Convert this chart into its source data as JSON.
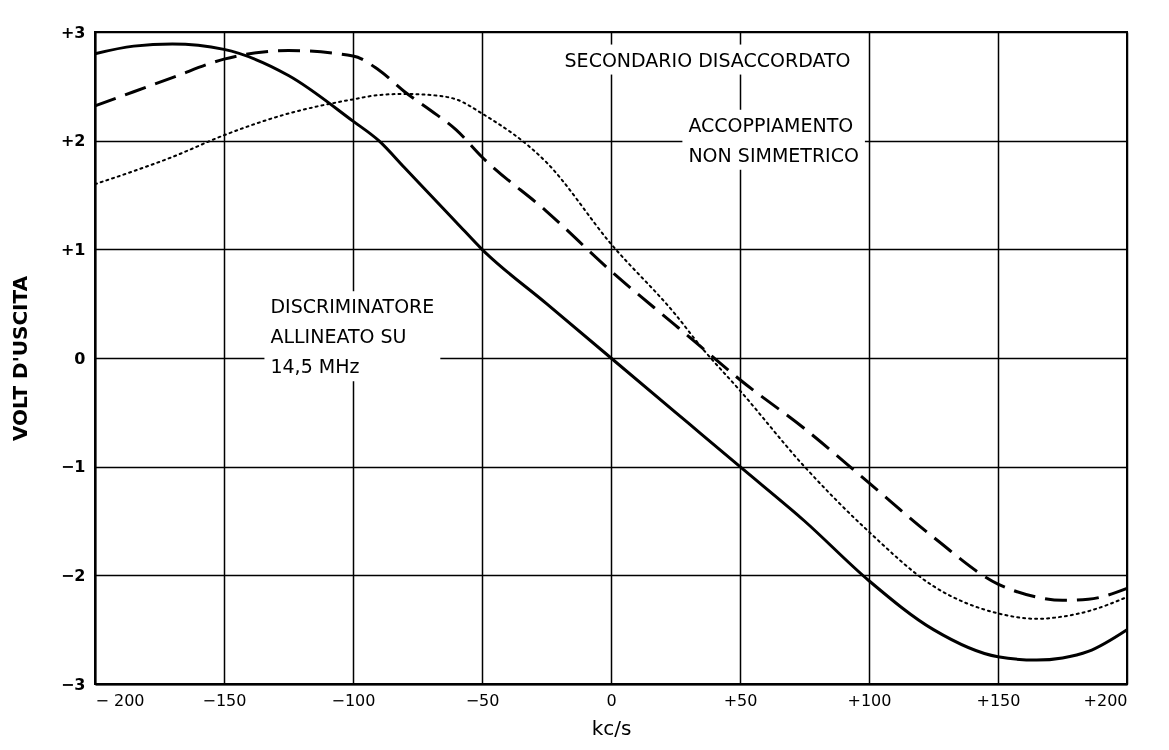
{
  "chart_data": {
    "type": "line",
    "xlabel": "kc/s",
    "ylabel": "VOLT D'USCITA",
    "x": [
      -200,
      -185,
      -170,
      -150,
      -125,
      -100,
      -90,
      -80,
      -70,
      -60,
      -50,
      -25,
      0,
      25,
      35,
      50,
      75,
      100,
      125,
      150,
      165,
      175,
      185,
      200
    ],
    "series": [
      {
        "color": "#000000",
        "line_style": "solid",
        "values": [
          2.8,
          2.87,
          2.89,
          2.84,
          2.6,
          2.18,
          2.0,
          1.75,
          1.5,
          1.25,
          1.0,
          0.5,
          0.0,
          -0.5,
          -0.7,
          -1.0,
          -1.5,
          -2.05,
          -2.5,
          -2.75,
          -2.78,
          -2.76,
          -2.7,
          -2.5
        ]
      },
      {
        "color": "#000000",
        "line_style": "dashed",
        "values": [
          2.32,
          2.45,
          2.58,
          2.75,
          2.83,
          2.78,
          2.65,
          2.45,
          2.28,
          2.1,
          1.85,
          1.35,
          0.8,
          0.3,
          0.1,
          -0.2,
          -0.65,
          -1.15,
          -1.65,
          -2.08,
          -2.2,
          -2.23,
          -2.22,
          -2.12
        ]
      },
      {
        "color": "#000000",
        "line_style": "dotted",
        "values": [
          1.6,
          1.72,
          1.85,
          2.05,
          2.25,
          2.38,
          2.42,
          2.43,
          2.42,
          2.38,
          2.25,
          1.8,
          1.05,
          0.4,
          0.1,
          -0.3,
          -1.0,
          -1.6,
          -2.1,
          -2.35,
          -2.4,
          -2.38,
          -2.33,
          -2.2
        ]
      }
    ],
    "xlim": [
      -200,
      200
    ],
    "xticks": [
      {
        "value": -200,
        "label": "− 200"
      },
      {
        "value": -150,
        "label": "−150"
      },
      {
        "value": -100,
        "label": "−100"
      },
      {
        "value": -50,
        "label": "−50"
      },
      0,
      {
        "value": 50,
        "label": "+50"
      },
      {
        "value": 100,
        "label": "+100"
      },
      {
        "value": 150,
        "label": "+150"
      },
      {
        "value": 200,
        "label": "+200"
      }
    ],
    "ylim": [
      -3,
      3
    ],
    "yticks": [
      {
        "value": -3,
        "label": "−3"
      },
      {
        "value": -2,
        "label": "−2"
      },
      {
        "value": -1,
        "label": "−1"
      },
      0,
      {
        "value": 1,
        "label": "+1"
      },
      {
        "value": 2,
        "label": "+2"
      },
      {
        "value": 3,
        "label": "+3"
      }
    ],
    "grid": true,
    "annotations": [
      "SECONDARIO  DISACCORDATO",
      "ACCOPPIAMENTO\nNON  SIMMETRICO",
      "DISCRIMINATORE\nALLINEATO  SU\n14,5  MHz"
    ]
  }
}
